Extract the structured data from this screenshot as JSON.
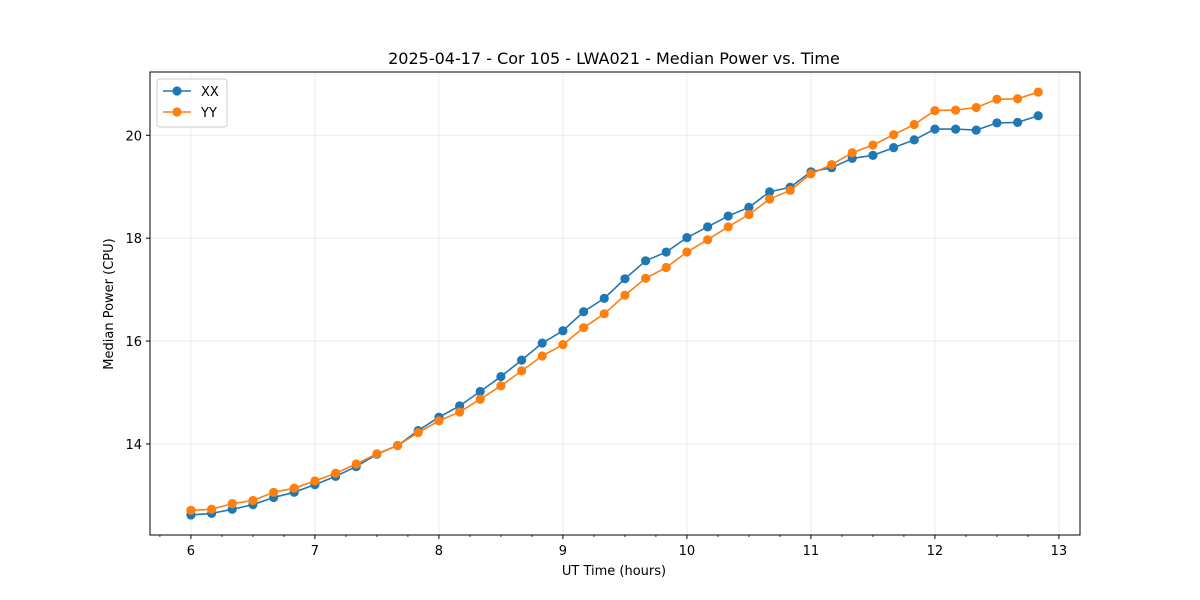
{
  "chart_data": {
    "type": "line",
    "title": "2025-04-17 - Cor 105 - LWA021 - Median Power vs. Time",
    "xlabel": "UT Time (hours)",
    "ylabel": "Median Power (CPU)",
    "xlim": [
      5.67,
      13.17
    ],
    "ylim": [
      12.23,
      21.23
    ],
    "xticks": [
      6,
      7,
      8,
      9,
      10,
      11,
      12,
      13
    ],
    "yticks": [
      14,
      16,
      18,
      20
    ],
    "x_minor_step": 0.25,
    "grid": true,
    "legend_position": "top-left",
    "colors": {
      "XX": "#1f77b4",
      "YY": "#ff7f0e"
    },
    "x": [
      6.0,
      6.167,
      6.333,
      6.5,
      6.667,
      6.833,
      7.0,
      7.167,
      7.333,
      7.5,
      7.667,
      7.833,
      8.0,
      8.167,
      8.333,
      8.5,
      8.667,
      8.833,
      9.0,
      9.167,
      9.333,
      9.5,
      9.667,
      9.833,
      10.0,
      10.167,
      10.333,
      10.5,
      10.667,
      10.833,
      11.0,
      11.167,
      11.333,
      11.5,
      11.667,
      11.833,
      12.0,
      12.167,
      12.333,
      12.5,
      12.667,
      12.833
    ],
    "series": [
      {
        "name": "XX",
        "values": [
          12.62,
          12.65,
          12.73,
          12.82,
          12.96,
          13.06,
          13.21,
          13.37,
          13.56,
          13.8,
          13.97,
          14.26,
          14.52,
          14.74,
          15.02,
          15.31,
          15.63,
          15.96,
          16.2,
          16.57,
          16.83,
          17.21,
          17.56,
          17.73,
          18.01,
          18.22,
          18.43,
          18.6,
          18.9,
          18.99,
          19.29,
          19.37,
          19.55,
          19.61,
          19.76,
          19.91,
          20.12,
          20.12,
          20.1,
          20.24,
          20.25,
          20.38
        ]
      },
      {
        "name": "YY",
        "values": [
          12.71,
          12.73,
          12.84,
          12.9,
          13.06,
          13.14,
          13.28,
          13.43,
          13.61,
          13.81,
          13.97,
          14.22,
          14.45,
          14.62,
          14.87,
          15.13,
          15.42,
          15.71,
          15.93,
          16.26,
          16.53,
          16.89,
          17.22,
          17.43,
          17.73,
          17.97,
          18.22,
          18.46,
          18.76,
          18.93,
          19.25,
          19.43,
          19.66,
          19.81,
          20.01,
          20.21,
          20.48,
          20.49,
          20.54,
          20.7,
          20.71,
          20.84
        ]
      }
    ]
  }
}
